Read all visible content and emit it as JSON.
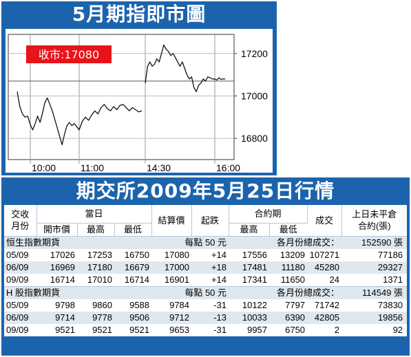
{
  "chart_data": {
    "type": "line",
    "title": "5月期指即市圖",
    "close_label": "收市:17080",
    "x_ticks": [
      "10:00",
      "11:00",
      "14:30",
      "16:00"
    ],
    "y_ticks": [
      16800,
      17000,
      17200
    ],
    "ylim": [
      16700,
      17290
    ],
    "reference_line": 17070,
    "series": [
      {
        "session": "morning",
        "points": [
          [
            "09:45",
            17020
          ],
          [
            "09:48",
            16950
          ],
          [
            "09:51",
            16915
          ],
          [
            "09:54",
            16900
          ],
          [
            "09:57",
            16905
          ],
          [
            "10:00",
            16865
          ],
          [
            "10:03",
            16840
          ],
          [
            "10:06",
            16870
          ],
          [
            "10:09",
            16905
          ],
          [
            "10:12",
            16875
          ],
          [
            "10:15",
            16920
          ],
          [
            "10:18",
            16970
          ],
          [
            "10:21",
            16990
          ],
          [
            "10:24",
            16960
          ],
          [
            "10:27",
            16930
          ],
          [
            "10:30",
            16890
          ],
          [
            "10:33",
            16850
          ],
          [
            "10:36",
            16810
          ],
          [
            "10:39",
            16770
          ],
          [
            "10:42",
            16820
          ],
          [
            "10:45",
            16860
          ],
          [
            "10:48",
            16875
          ],
          [
            "10:51",
            16860
          ],
          [
            "10:54",
            16870
          ],
          [
            "10:57",
            16855
          ],
          [
            "11:00",
            16840
          ],
          [
            "11:03",
            16880
          ],
          [
            "11:06",
            16900
          ],
          [
            "11:09",
            16885
          ],
          [
            "11:12",
            16910
          ],
          [
            "11:15",
            16930
          ],
          [
            "11:18",
            16915
          ],
          [
            "11:21",
            16945
          ],
          [
            "11:24",
            16960
          ],
          [
            "11:27",
            16940
          ],
          [
            "11:30",
            16930
          ],
          [
            "11:33",
            16950
          ],
          [
            "11:36",
            16935
          ],
          [
            "11:39",
            16955
          ],
          [
            "11:42",
            16960
          ],
          [
            "11:45",
            16945
          ],
          [
            "11:48",
            16930
          ],
          [
            "11:51",
            16945
          ],
          [
            "11:54",
            16935
          ],
          [
            "11:57",
            16925
          ],
          [
            "12:00",
            16930
          ]
        ]
      },
      {
        "session": "afternoon",
        "points": [
          [
            "14:30",
            17060
          ],
          [
            "14:33",
            17140
          ],
          [
            "14:36",
            17160
          ],
          [
            "14:39",
            17140
          ],
          [
            "14:42",
            17150
          ],
          [
            "14:45",
            17175
          ],
          [
            "14:48",
            17160
          ],
          [
            "14:51",
            17200
          ],
          [
            "14:54",
            17240
          ],
          [
            "14:57",
            17220
          ],
          [
            "15:00",
            17210
          ],
          [
            "15:03",
            17190
          ],
          [
            "15:06",
            17200
          ],
          [
            "15:09",
            17180
          ],
          [
            "15:12",
            17160
          ],
          [
            "15:15",
            17140
          ],
          [
            "15:18",
            17160
          ],
          [
            "15:21",
            17130
          ],
          [
            "15:24",
            17100
          ],
          [
            "15:27",
            17080
          ],
          [
            "15:30",
            17090
          ],
          [
            "15:33",
            17040
          ],
          [
            "15:36",
            17020
          ],
          [
            "15:39",
            17050
          ],
          [
            "15:42",
            17060
          ],
          [
            "15:45",
            17080
          ],
          [
            "15:48",
            17070
          ],
          [
            "15:51",
            17090
          ],
          [
            "15:54",
            17085
          ],
          [
            "15:57",
            17080
          ],
          [
            "16:00",
            17080
          ],
          [
            "16:03",
            17075
          ],
          [
            "16:06",
            17085
          ],
          [
            "16:09",
            17078
          ],
          [
            "16:12",
            17080
          ],
          [
            "16:15",
            17080
          ]
        ]
      }
    ]
  },
  "table": {
    "title": "期交所2009年5月25日行情",
    "headers": {
      "month": "交收\n月份",
      "day": "當日",
      "open": "開市價",
      "high": "最高",
      "low": "最低",
      "settle": "結算價",
      "change": "起跌",
      "contract": "合約期",
      "c_high": "最高",
      "c_low": "最低",
      "volume": "成交",
      "oi": "上日未平倉\n合約(張)"
    },
    "sections": [
      {
        "name": "恒生指數期貨",
        "point": "每點 50 元",
        "total_label": "各月份總成交：",
        "total": "152590 張",
        "rows": [
          [
            "05/09",
            "17026",
            "17253",
            "16750",
            "17080",
            "+14",
            "17556",
            "13209",
            "107271",
            "77186"
          ],
          [
            "06/09",
            "16969",
            "17180",
            "16679",
            "17000",
            "+18",
            "17481",
            "11180",
            "45280",
            "29327"
          ],
          [
            "09/09",
            "16714",
            "17010",
            "16714",
            "16901",
            "+14",
            "17341",
            "11650",
            "24",
            "1371"
          ]
        ]
      },
      {
        "name": "H 股指數期貨",
        "point": "每點 50 元",
        "total_label": "各月份總成交：",
        "total": "114549 張",
        "rows": [
          [
            "05/09",
            "9798",
            "9860",
            "9588",
            "9784",
            "-31",
            "10122",
            "7797",
            "71742",
            "73830"
          ],
          [
            "06/09",
            "9714",
            "9778",
            "9506",
            "9712",
            "-13",
            "10033",
            "6390",
            "42805",
            "19856"
          ],
          [
            "09/09",
            "9521",
            "9521",
            "9521",
            "9653",
            "-31",
            "9957",
            "6750",
            "2",
            "92"
          ]
        ]
      }
    ]
  },
  "colors": {
    "panel": "#1b64ad",
    "label_bg": "#e8141c",
    "row_alt": "#dfe8ef"
  }
}
